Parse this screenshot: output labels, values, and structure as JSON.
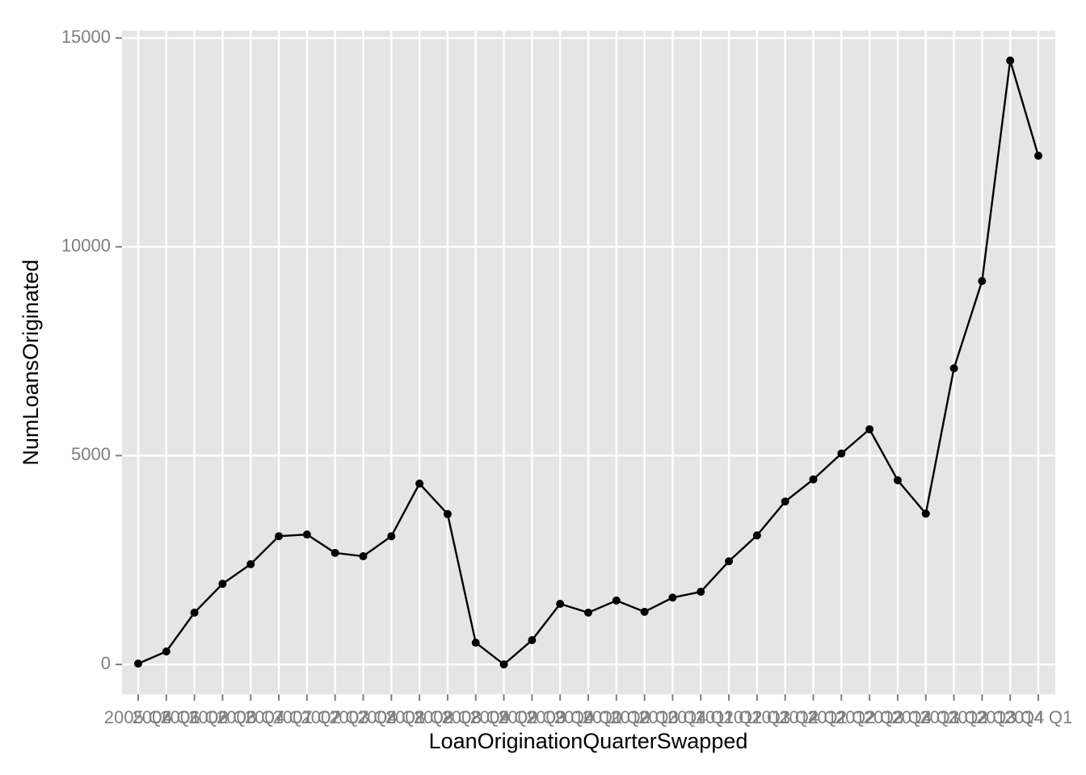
{
  "chart_data": {
    "type": "line",
    "x_label": "LoanOriginationQuarterSwapped",
    "y_label": "NumLoansOriginated",
    "categories": [
      "2005 Q4",
      "2006 Q1",
      "2006 Q2",
      "2006 Q3",
      "2006 Q4",
      "2007 Q1",
      "2007 Q2",
      "2007 Q3",
      "2007 Q4",
      "2008 Q1",
      "2008 Q2",
      "2008 Q3",
      "2008 Q4",
      "2009 Q2",
      "2009 Q3",
      "2009 Q4",
      "2010 Q1",
      "2010 Q2",
      "2010 Q3",
      "2010 Q4",
      "2011 Q1",
      "2011 Q2",
      "2011 Q3",
      "2011 Q4",
      "2012 Q1",
      "2012 Q2",
      "2012 Q3",
      "2012 Q4",
      "2013 Q1",
      "2013 Q2",
      "2013 Q3",
      "2013 Q4",
      "2014 Q1"
    ],
    "values": [
      20,
      310,
      1240,
      1930,
      2400,
      3070,
      3110,
      2670,
      2590,
      3070,
      4330,
      3600,
      520,
      0,
      580,
      1450,
      1240,
      1530,
      1260,
      1600,
      1740,
      2470,
      3090,
      3900,
      4430,
      5050,
      5630,
      4410,
      3610,
      7090,
      9180,
      14460,
      12180
    ],
    "color": "#000000",
    "ylim": [
      -715,
      15175
    ],
    "yticks": [
      0,
      5000,
      10000,
      15000
    ],
    "grid": true
  }
}
